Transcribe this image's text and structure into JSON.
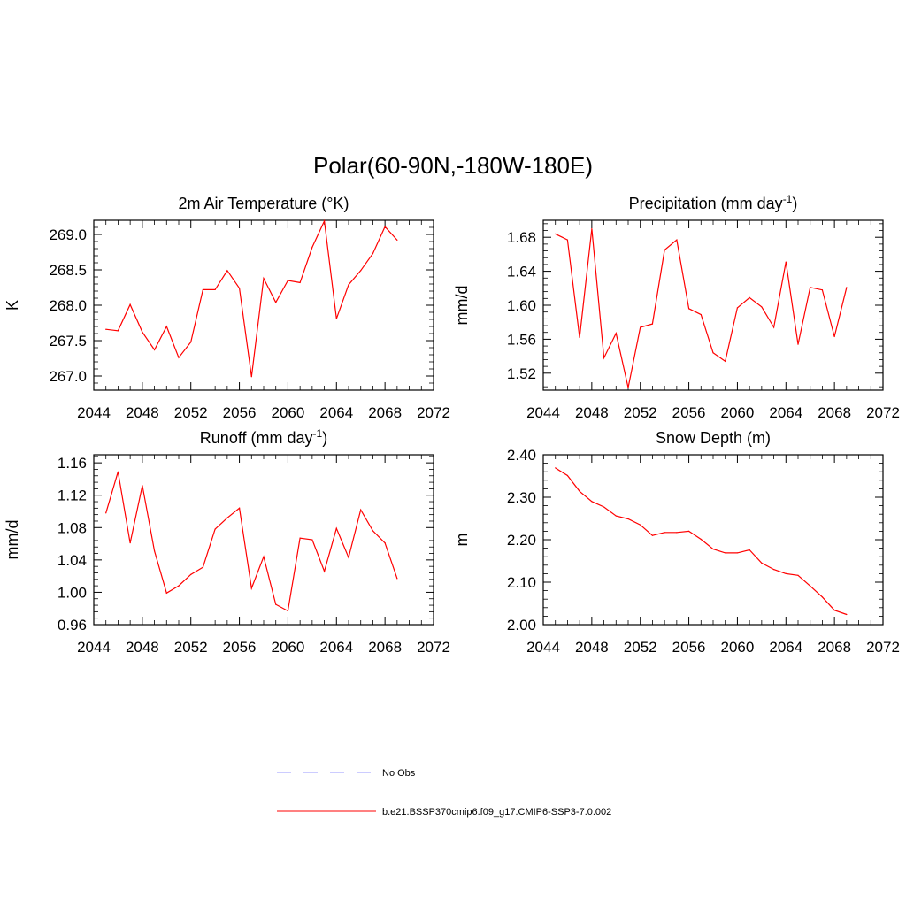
{
  "title": "Polar(60-90N,-180W-180E)",
  "colors": {
    "model": "#ff0000",
    "obs": "#9999ff",
    "axis": "#000000"
  },
  "legend": [
    {
      "label": "No Obs",
      "style": "dashed",
      "color": "#9999ff"
    },
    {
      "label": "b.e21.BSSP370cmip6.f09_g17.CMIP6-SSP3-7.0.002",
      "style": "solid",
      "color": "#ff0000"
    }
  ],
  "chart_data": [
    {
      "type": "line",
      "title": "2m Air Temperature (°K)",
      "ylabel": "K",
      "xlim": [
        2044,
        2072
      ],
      "ylim": [
        266.8,
        269.2
      ],
      "xticks": [
        2044,
        2048,
        2052,
        2056,
        2060,
        2064,
        2068,
        2072
      ],
      "xtick_labels": [
        "2044",
        "2048",
        "2052",
        "2056",
        "2060",
        "2064",
        "2068",
        "2072"
      ],
      "yticks": [
        267.0,
        267.5,
        268.0,
        268.5,
        269.0
      ],
      "ytick_labels": [
        "267.0",
        "267.5",
        "268.0",
        "268.5",
        "269.0"
      ],
      "series": [
        {
          "x": [
            2045,
            2046,
            2047,
            2048,
            2049,
            2050,
            2051,
            2052,
            2053,
            2054,
            2055,
            2056,
            2057,
            2058,
            2059,
            2060,
            2061,
            2062,
            2063,
            2064,
            2065,
            2066,
            2067,
            2068,
            2069
          ],
          "values": [
            267.66,
            267.64,
            268.01,
            267.62,
            267.37,
            267.7,
            267.26,
            267.48,
            268.22,
            268.22,
            268.49,
            268.24,
            266.99,
            268.38,
            268.04,
            268.35,
            268.32,
            268.82,
            269.19,
            267.81,
            268.29,
            268.49,
            268.73,
            269.11,
            268.92
          ]
        }
      ]
    },
    {
      "type": "line",
      "title": "Precipitation (mm day-1)",
      "title_parts": [
        "Precipitation (mm day",
        "-1",
        ")"
      ],
      "ylabel": "mm/d",
      "xlim": [
        2044,
        2072
      ],
      "ylim": [
        1.5,
        1.7
      ],
      "xticks": [
        2044,
        2048,
        2052,
        2056,
        2060,
        2064,
        2068,
        2072
      ],
      "xtick_labels": [
        "2044",
        "2048",
        "2052",
        "2056",
        "2060",
        "2064",
        "2068",
        "2072"
      ],
      "yticks": [
        1.52,
        1.56,
        1.6,
        1.64,
        1.68
      ],
      "ytick_labels": [
        "1.52",
        "1.56",
        "1.60",
        "1.64",
        "1.68"
      ],
      "series": [
        {
          "x": [
            2045,
            2046,
            2047,
            2048,
            2049,
            2050,
            2051,
            2052,
            2053,
            2054,
            2055,
            2056,
            2057,
            2058,
            2059,
            2060,
            2061,
            2062,
            2063,
            2064,
            2065,
            2066,
            2067,
            2068,
            2069
          ],
          "values": [
            1.684,
            1.677,
            1.562,
            1.69,
            1.538,
            1.567,
            1.503,
            1.574,
            1.578,
            1.665,
            1.677,
            1.596,
            1.589,
            1.544,
            1.534,
            1.597,
            1.609,
            1.598,
            1.574,
            1.651,
            1.554,
            1.621,
            1.618,
            1.563,
            1.621
          ]
        }
      ]
    },
    {
      "type": "line",
      "title": "Runoff (mm day-1)",
      "title_parts": [
        "Runoff (mm day",
        "-1",
        ")"
      ],
      "ylabel": "mm/d",
      "xlim": [
        2044,
        2072
      ],
      "ylim": [
        0.96,
        1.17
      ],
      "xticks": [
        2044,
        2048,
        2052,
        2056,
        2060,
        2064,
        2068,
        2072
      ],
      "xtick_labels": [
        "2044",
        "2048",
        "2052",
        "2056",
        "2060",
        "2064",
        "2068",
        "2072"
      ],
      "yticks": [
        0.96,
        1.0,
        1.04,
        1.08,
        1.12,
        1.16
      ],
      "ytick_labels": [
        "0.96",
        "1.00",
        "1.04",
        "1.08",
        "1.12",
        "1.16"
      ],
      "series": [
        {
          "x": [
            2045,
            2046,
            2047,
            2048,
            2049,
            2050,
            2051,
            2052,
            2053,
            2054,
            2055,
            2056,
            2057,
            2058,
            2059,
            2060,
            2061,
            2062,
            2063,
            2064,
            2065,
            2066,
            2067,
            2068,
            2069
          ],
          "values": [
            1.098,
            1.149,
            1.061,
            1.132,
            1.051,
            0.999,
            1.008,
            1.022,
            1.031,
            1.078,
            1.092,
            1.104,
            1.005,
            1.044,
            0.985,
            0.977,
            1.067,
            1.065,
            1.026,
            1.079,
            1.043,
            1.102,
            1.076,
            1.061,
            1.017
          ]
        }
      ]
    },
    {
      "type": "line",
      "title": "Snow Depth (m)",
      "ylabel": "m",
      "xlim": [
        2044,
        2072
      ],
      "ylim": [
        2.0,
        2.4
      ],
      "xticks": [
        2044,
        2048,
        2052,
        2056,
        2060,
        2064,
        2068,
        2072
      ],
      "xtick_labels": [
        "2044",
        "2048",
        "2052",
        "2056",
        "2060",
        "2064",
        "2068",
        "2072"
      ],
      "yticks": [
        2.0,
        2.1,
        2.2,
        2.3,
        2.4
      ],
      "ytick_labels": [
        "2.00",
        "2.10",
        "2.20",
        "2.30",
        "2.40"
      ],
      "series": [
        {
          "x": [
            2045,
            2046,
            2047,
            2048,
            2049,
            2050,
            2051,
            2052,
            2053,
            2054,
            2055,
            2056,
            2057,
            2058,
            2059,
            2060,
            2061,
            2062,
            2063,
            2064,
            2065,
            2066,
            2067,
            2068,
            2069
          ],
          "values": [
            2.369,
            2.351,
            2.314,
            2.29,
            2.277,
            2.256,
            2.249,
            2.235,
            2.21,
            2.217,
            2.217,
            2.22,
            2.201,
            2.178,
            2.169,
            2.169,
            2.176,
            2.145,
            2.13,
            2.12,
            2.116,
            2.091,
            2.065,
            2.034,
            2.024
          ]
        }
      ]
    }
  ]
}
